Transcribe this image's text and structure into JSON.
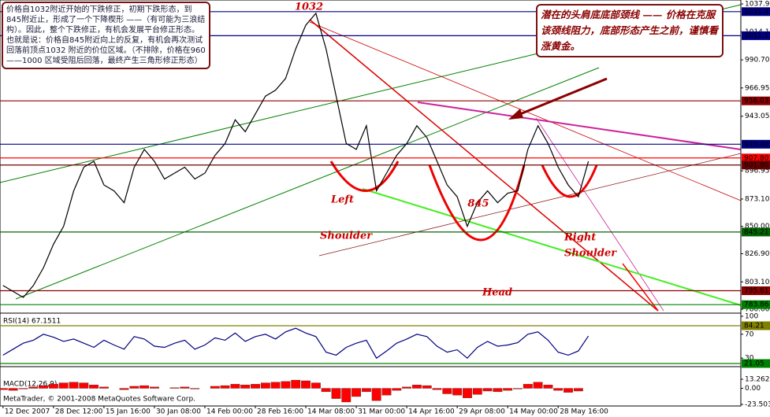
{
  "chart_data": [
    {
      "type": "line",
      "color": "#000000",
      "x": [
        0,
        2,
        4,
        6,
        8,
        10,
        12,
        14,
        16,
        18,
        20,
        22,
        24,
        26,
        28,
        30,
        32,
        34,
        36,
        38,
        40,
        42,
        44,
        46,
        48,
        50,
        52,
        54,
        56,
        58,
        60,
        62,
        64,
        66,
        68,
        70,
        72,
        74,
        76,
        78,
        80,
        82,
        84,
        86,
        88,
        90,
        92,
        94,
        96,
        98,
        100,
        102,
        104,
        106,
        108,
        110,
        112,
        114,
        116
      ],
      "values": [
        800,
        795,
        790,
        800,
        815,
        835,
        850,
        880,
        900,
        905,
        885,
        880,
        870,
        900,
        915,
        905,
        890,
        895,
        900,
        890,
        895,
        910,
        920,
        940,
        930,
        945,
        960,
        965,
        975,
        1000,
        1020,
        1030,
        1000,
        960,
        920,
        915,
        935,
        880,
        895,
        910,
        920,
        935,
        925,
        905,
        885,
        875,
        850,
        870,
        880,
        870,
        878,
        880,
        915,
        935,
        920,
        900,
        885,
        875,
        905
      ],
      "xlim": [
        -0.6,
        146.2
      ],
      "xticks": [
        {
          "value": 0,
          "label": "12 Dec 2007"
        },
        {
          "value": 10,
          "label": "28 Dec 12:00"
        },
        {
          "value": 20,
          "label": "15 Jan 16:00"
        },
        {
          "value": 30,
          "label": "30 Jan 08:00"
        },
        {
          "value": 40,
          "label": "14 Feb 00:00"
        },
        {
          "value": 50,
          "label": "28 Feb 16:00"
        },
        {
          "value": 60,
          "label": "14 Mar 08:00"
        },
        {
          "value": 70,
          "label": "31 Mar 00:00"
        },
        {
          "value": 80,
          "label": "14 Apr 16:00"
        },
        {
          "value": 90,
          "label": "29 Apr 08:00"
        },
        {
          "value": 100,
          "label": "14 May 00:00"
        },
        {
          "value": 110,
          "label": "28 May 16:00"
        }
      ],
      "ylim": [
        780,
        1037.94
      ],
      "yticks": [
        1037.94,
        1014.19,
        {
          "value": 990.7,
          "label": "990.70"
        },
        966.95,
        943.05,
        896.95,
        {
          "value": 873.1,
          "label": "873.10"
        },
        {
          "value": 850,
          "label": "850.00"
        },
        {
          "value": 826.9,
          "label": "826.90"
        },
        {
          "value": 803.1,
          "label": "803.10"
        },
        {
          "value": 780,
          "label": "780.00"
        }
      ],
      "levels": [
        {
          "value": 1031.43,
          "color": "#000080"
        },
        {
          "value": 1011.11,
          "color": "#000080"
        },
        {
          "value": 956.03,
          "color": "#8b0000"
        },
        {
          "value": 919.4,
          "label": "919.40",
          "color": "#000080"
        },
        {
          "value": 907.8,
          "label": "907.80",
          "color": "#ff0000"
        },
        {
          "value": 901.8,
          "label": "901.80",
          "color": "#6b0000"
        },
        {
          "value": 845.21,
          "color": "#006400"
        },
        {
          "value": 795.61,
          "color": "#8b0000"
        },
        {
          "value": 783.86,
          "color": "#008000"
        }
      ],
      "annotations": [
        "1032",
        "845",
        "Left",
        "Shoulder",
        "Right",
        "Shoulder",
        "Head"
      ],
      "notes": [
        "价格自1032附近开始的下跌修正，初期下跌形态，到845附近止，形成了一个下降楔形 ——（有可能为三浪结构）。因此，整个下跌修正，有机会发展平台修正形态。也就是说：价格自845附近向上的反复，有机会再次测试回落前顶点1032 附近的价位区域。（不排除，价格在960 ——1000 区域受阻后回落，最终产生三角形修正形态）",
        "潜在的头肩底底部颈线 —— 价格在克服该颈线阻力，底部形态产生之前，谨慎看涨黄金。"
      ],
      "footer": "MetaTrader, © 2001-2008 MetaQuotes Software Corp."
    },
    {
      "type": "line",
      "title": "RSI(14) 67.1511",
      "color": "#000080",
      "values": [
        35,
        45,
        55,
        60,
        70,
        65,
        58,
        62,
        55,
        48,
        60,
        52,
        45,
        66,
        62,
        50,
        48,
        55,
        60,
        45,
        52,
        64,
        60,
        72,
        58,
        66,
        70,
        62,
        74,
        80,
        72,
        66,
        40,
        35,
        48,
        55,
        60,
        30,
        42,
        55,
        62,
        70,
        66,
        50,
        40,
        44,
        30,
        48,
        58,
        50,
        52,
        56,
        70,
        74,
        60,
        40,
        35,
        42,
        67
      ],
      "ylim": [
        0,
        100
      ],
      "yticks": [
        100,
        70,
        30
      ],
      "levels": [
        {
          "value": 84.21,
          "color": "#808000"
        },
        {
          "value": 21.05,
          "color": "#008000"
        }
      ]
    },
    {
      "type": "bar",
      "title": "MACD(12,26,9)",
      "color": "#ff0000",
      "values": [
        -2,
        -3,
        -1,
        2,
        4,
        6,
        8,
        9,
        8,
        5,
        2,
        0,
        -2,
        3,
        4,
        2,
        0,
        1,
        2,
        -1,
        0,
        3,
        4,
        6,
        5,
        6,
        8,
        9,
        10,
        12,
        11,
        8,
        -5,
        -15,
        -20,
        -12,
        -5,
        -18,
        -10,
        -3,
        2,
        5,
        4,
        -2,
        -8,
        -10,
        -14,
        -9,
        -4,
        -5,
        -3,
        -1,
        6,
        9,
        5,
        -3,
        -6,
        -4,
        0
      ],
      "ylim": [
        -23.503,
        13.262
      ],
      "yticks": [
        13.262,
        {
          "value": 0,
          "label": "0.00"
        },
        -23.503
      ]
    }
  ]
}
